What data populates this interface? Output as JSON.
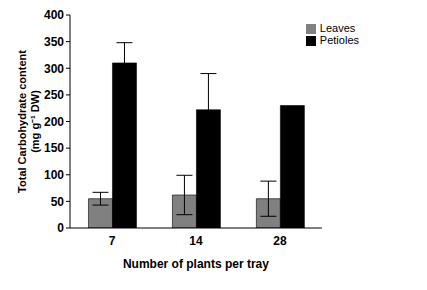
{
  "chart_data": {
    "type": "bar",
    "categories": [
      "7",
      "14",
      "28"
    ],
    "series": [
      {
        "name": "Leaves",
        "color": "#808080",
        "values": [
          55,
          62,
          55
        ],
        "errors": [
          12,
          37,
          33
        ]
      },
      {
        "name": "Petioles",
        "color": "#000000",
        "values": [
          310,
          222,
          230
        ],
        "errors": [
          38,
          68,
          null
        ]
      }
    ],
    "x_label": "Number of plants per tray",
    "y_label": "Total Carbohydrate content (mg g⁻¹ DW)",
    "ylim": [
      0,
      400
    ],
    "yticks": [
      0,
      50,
      100,
      150,
      200,
      250,
      300,
      350,
      400
    ],
    "grid": false,
    "legend": "upper right"
  }
}
